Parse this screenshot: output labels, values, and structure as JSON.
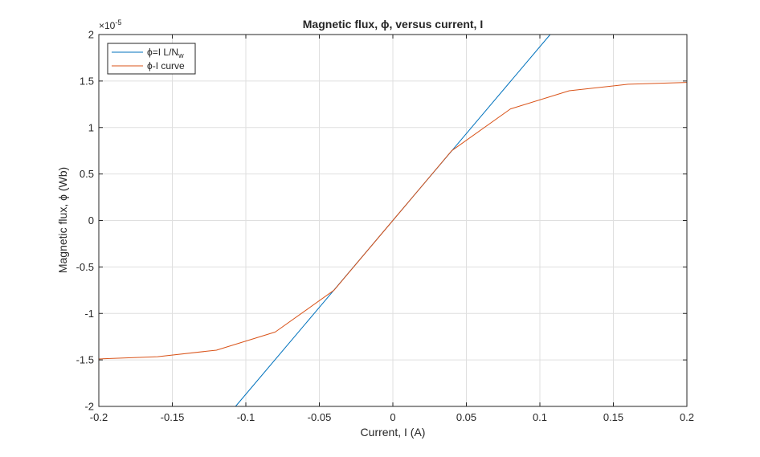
{
  "chart_data": {
    "type": "line",
    "title": "Magnetic  flux,  ϕ,  versus  current,  I",
    "xlabel": "Current, I (A)",
    "ylabel": "Magnetic  flux,  ϕ  (Wb)",
    "y_exponent_label": "×10",
    "y_exponent_power": "-5",
    "xlim": [
      -0.2,
      0.2
    ],
    "ylim": [
      -2,
      2
    ],
    "x_ticks": [
      -0.2,
      -0.15,
      -0.1,
      -0.05,
      0,
      0.05,
      0.1,
      0.15,
      0.2
    ],
    "x_tick_labels": [
      "-0.2",
      "-0.15",
      "-0.1",
      "-0.05",
      "0",
      "0.05",
      "0.1",
      "0.15",
      "0.2"
    ],
    "y_ticks": [
      -2,
      -1.5,
      -1,
      -0.5,
      0,
      0.5,
      1,
      1.5,
      2
    ],
    "y_tick_labels": [
      "-2",
      "-1.5",
      "-1",
      "-0.5",
      "0",
      "0.5",
      "1",
      "1.5",
      "2"
    ],
    "grid": true,
    "legend_position": "top-left",
    "series": [
      {
        "name": "ϕ=I  L/N",
        "name_subscript": "w",
        "color": "#0072BD",
        "x": [
          -0.107,
          0.107
        ],
        "y": [
          -2.0,
          2.0
        ]
      },
      {
        "name": "ϕ-I  curve",
        "color": "#D95319",
        "x": [
          -0.2,
          -0.16,
          -0.12,
          -0.08,
          -0.04,
          0,
          0.04,
          0.08,
          0.12,
          0.16,
          0.2
        ],
        "y": [
          -1.49,
          -1.465,
          -1.395,
          -1.2,
          -0.75,
          0,
          0.75,
          1.2,
          1.395,
          1.465,
          1.485
        ]
      }
    ]
  }
}
